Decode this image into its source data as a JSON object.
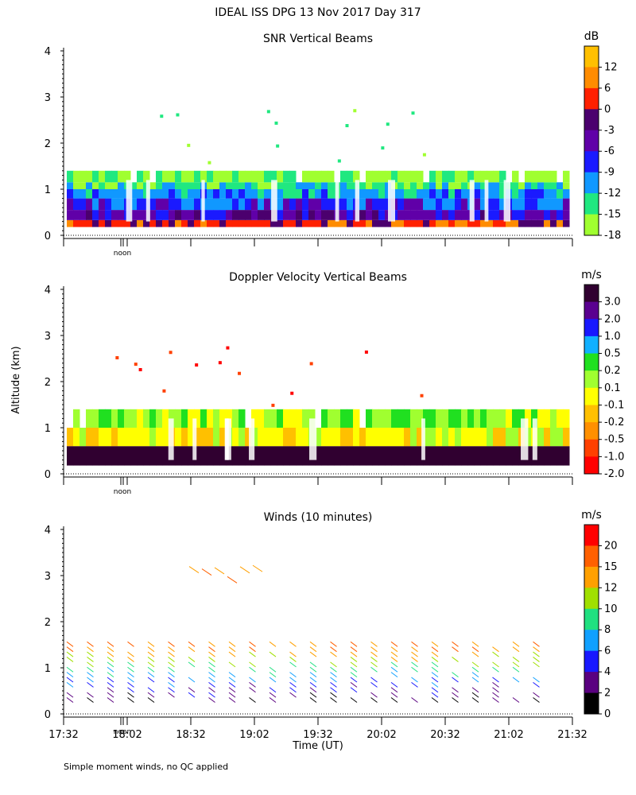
{
  "header": {
    "title": "IDEAL ISS DPG   13 Nov 2017 Day 317"
  },
  "footer": {
    "note": "Simple moment winds, no QC applied"
  },
  "colors": {
    "palette": [
      "#000000",
      "#3a0048",
      "#5a0090",
      "#1818ff",
      "#0070ff",
      "#10b0ff",
      "#20d880",
      "#40ff40",
      "#a0ff30",
      "#ffff00",
      "#ffd000",
      "#ffa000",
      "#ff6000",
      "#ff2000",
      "#e00000"
    ]
  },
  "chart_data": [
    {
      "type": "heatmap",
      "title": "SNR Vertical Beams",
      "ylabel": "",
      "xlabel": "",
      "ylim": [
        0,
        4
      ],
      "yticks": [
        "0",
        "1",
        "2",
        "3",
        "4"
      ],
      "marker_label": "noon",
      "colorbar": {
        "unit": "dB",
        "labels": [
          "12",
          "6",
          "0",
          "-3",
          "-6",
          "-9",
          "-12",
          "-15",
          "-18"
        ],
        "colors": [
          "#ffc000",
          "#ff8c00",
          "#ff2000",
          "#4b006e",
          "#6000a8",
          "#1a1aff",
          "#1098ff",
          "#20e880",
          "#a0ff30"
        ]
      },
      "layers": [
        {
          "z_low": 0.18,
          "z_high": 0.33,
          "value": 0
        },
        {
          "z_low": 0.33,
          "z_high": 0.55,
          "value": -6
        },
        {
          "z_low": 0.55,
          "z_high": 0.8,
          "value": -9
        },
        {
          "z_low": 0.8,
          "z_high": 1.0,
          "value": -12
        },
        {
          "z_low": 1.0,
          "z_high": 1.15,
          "value": -15
        },
        {
          "z_low": 1.15,
          "z_high": 1.4,
          "value": -18
        }
      ]
    },
    {
      "type": "heatmap",
      "title": "Doppler Velocity Vertical Beams",
      "ylabel": "Altitude (km)",
      "xlabel": "",
      "ylim": [
        0,
        4
      ],
      "yticks": [
        "0",
        "1",
        "2",
        "3",
        "4"
      ],
      "marker_label": "noon",
      "colorbar": {
        "unit": "m/s",
        "labels": [
          "3.0",
          "2.0",
          "1.0",
          "0.5",
          "0.2",
          "0.1",
          "-0.1",
          "-0.2",
          "-0.5",
          "-1.0",
          "-2.0"
        ],
        "colors": [
          "#300030",
          "#5a0090",
          "#1818ff",
          "#10b0ff",
          "#20e020",
          "#a0ff30",
          "#ffff00",
          "#ffc000",
          "#ff9000",
          "#ff4000",
          "#ff0000"
        ]
      },
      "layers": [
        {
          "z_low": 0.18,
          "z_high": 0.6,
          "value": 0
        },
        {
          "z_low": 0.6,
          "z_high": 1.0,
          "value": -0.1
        },
        {
          "z_low": 1.0,
          "z_high": 1.4,
          "value": 0.1
        }
      ]
    },
    {
      "type": "scatter",
      "title": "Winds (10 minutes)",
      "ylabel": "",
      "xlabel": "Time (UT)",
      "ylim": [
        0,
        4
      ],
      "yticks": [
        "0",
        "1",
        "2",
        "3",
        "4"
      ],
      "xticks": [
        "17:32",
        "18:02",
        "18:32",
        "19:02",
        "19:32",
        "20:02",
        "20:32",
        "21:02",
        "21:32"
      ],
      "marker_label": "noon",
      "colorbar": {
        "unit": "m/s",
        "labels": [
          "20",
          "15",
          "12",
          "10",
          "8",
          "6",
          "4",
          "2",
          "0"
        ],
        "colors": [
          "#ff0000",
          "#ff6000",
          "#ffa000",
          "#a0e000",
          "#20e080",
          "#10a0ff",
          "#1818ff",
          "#5a0080",
          "#000000"
        ]
      }
    }
  ]
}
